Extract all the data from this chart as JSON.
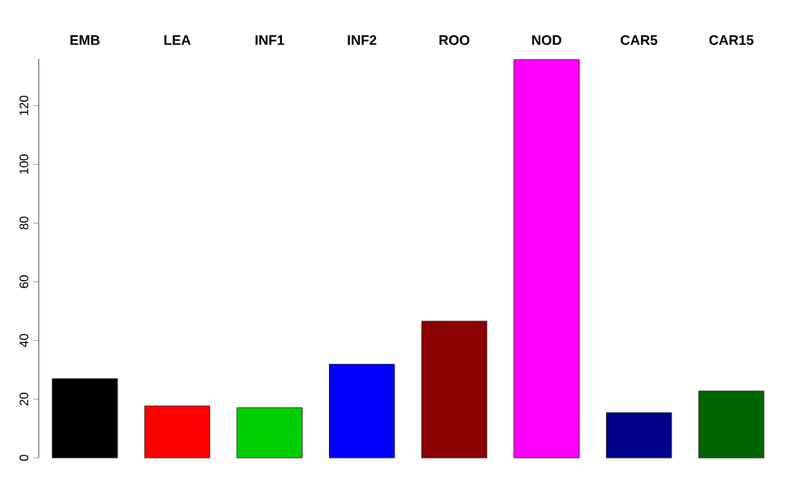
{
  "chart_data": {
    "type": "bar",
    "categories": [
      "EMB",
      "LEA",
      "INF1",
      "INF2",
      "ROO",
      "NOD",
      "CAR5",
      "CAR15"
    ],
    "values": [
      27.0,
      17.7,
      17.1,
      31.9,
      46.6,
      135.7,
      15.4,
      22.8
    ],
    "colors": [
      "#000000",
      "#ff0000",
      "#00cd00",
      "#0000ff",
      "#8b0000",
      "#ff00ff",
      "#00008b",
      "#006400"
    ],
    "ylim": [
      0,
      136
    ],
    "yticks": [
      0,
      20,
      40,
      60,
      80,
      100,
      120
    ],
    "grid": false
  }
}
